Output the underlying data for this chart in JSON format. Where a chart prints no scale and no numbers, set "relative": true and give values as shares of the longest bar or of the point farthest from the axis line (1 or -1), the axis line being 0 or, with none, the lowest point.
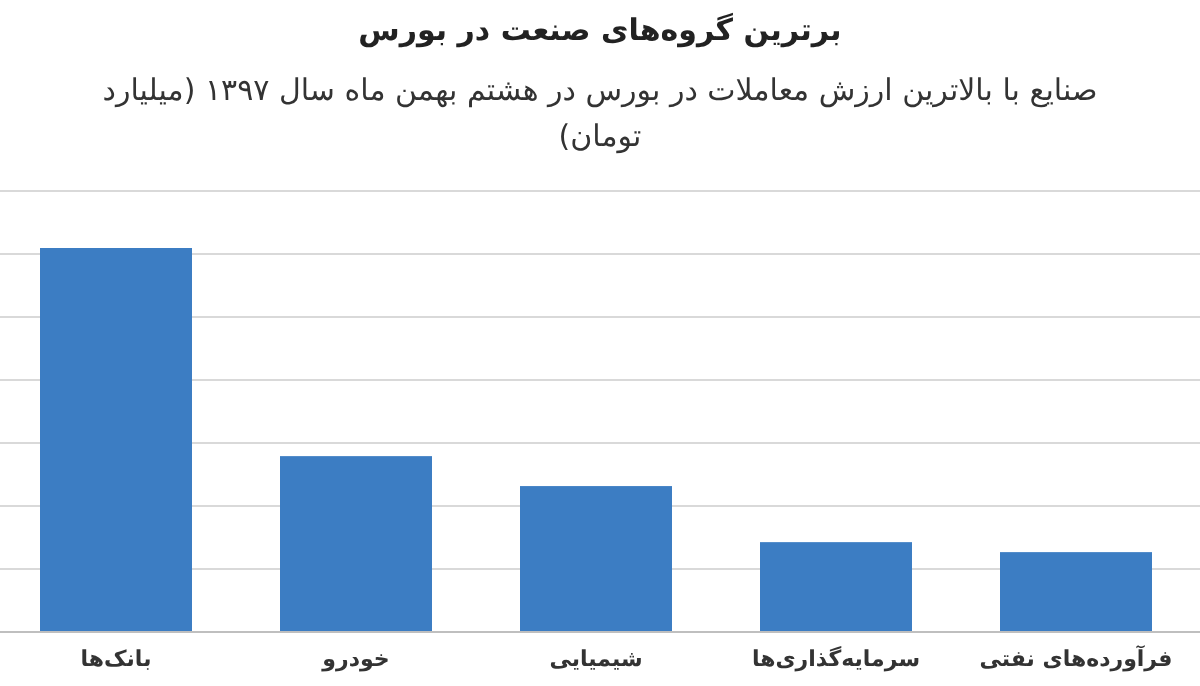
{
  "chart_data": {
    "type": "bar",
    "title": "برترین گروه‌های صنعت در بورس",
    "subtitle": "صنایع با بالاترین ارزش  معاملات در بورس در هشتم بهمن ماه سال ۱۳۹۷ (میلیارد تومان)",
    "categories": [
      "بانک‌ها",
      "خودرو",
      "شیمیایی",
      "سرمایه‌گذاری‌ها",
      "فرآورده‌های نفتی"
    ],
    "values": [
      1,
      0.458,
      0.38,
      0.234,
      0.208
    ],
    "color": "#3c7dc3",
    "relative": true,
    "grid": "y"
  }
}
